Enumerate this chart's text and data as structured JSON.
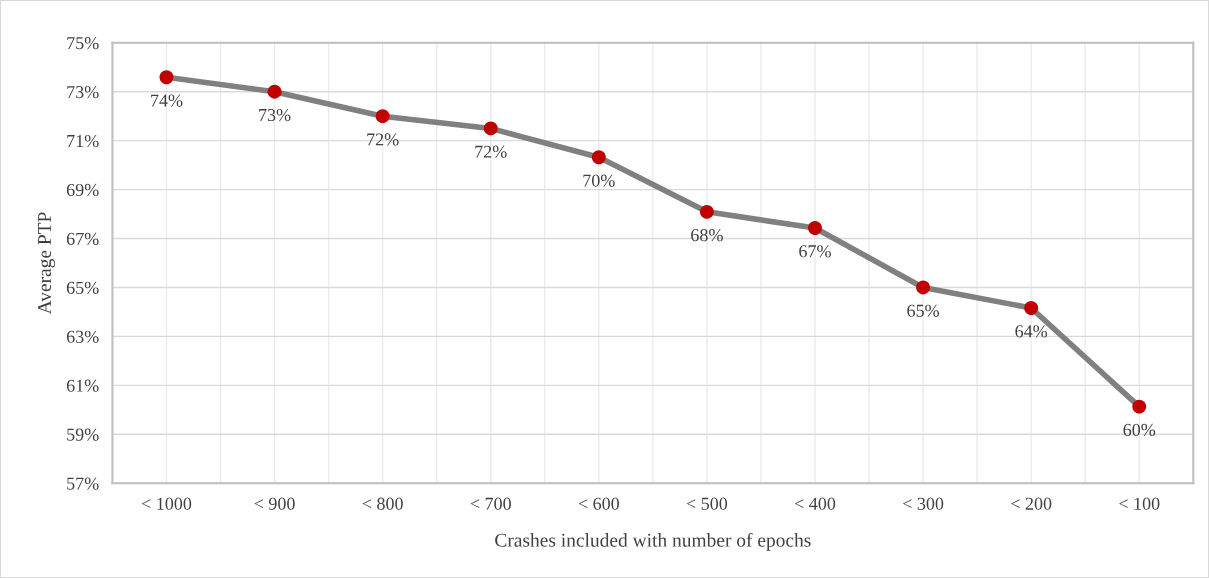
{
  "chart_data": {
    "type": "line",
    "xlabel": "Crashes included with number of epochs",
    "ylabel": "Average PTP",
    "categories": [
      "< 1000",
      "< 900",
      "< 800",
      "< 700",
      "< 600",
      "< 500",
      "< 400",
      "< 300",
      "< 200",
      "< 100"
    ],
    "series": [
      {
        "color": "#808080",
        "colors": [
          "#c00000",
          "#c00000",
          "#c00000",
          "#c00000",
          "#c00000",
          "#c00000",
          "#c00000",
          "#c00000",
          "#c00000",
          "#c00000"
        ],
        "values": [
          73.59,
          73.0,
          72.0,
          71.5,
          70.32,
          68.09,
          67.43,
          65.0,
          64.16,
          60.13
        ],
        "value_labels": [
          "74%",
          "73%",
          "72%",
          "72%",
          "70%",
          "68%",
          "67%",
          "65%",
          "64%",
          "60%"
        ]
      }
    ],
    "ylim": [
      57,
      75
    ],
    "yticks": [
      {
        "value": 57,
        "label": "57%"
      },
      {
        "value": 59,
        "label": "59%"
      },
      {
        "value": 61,
        "label": "61%"
      },
      {
        "value": 63,
        "label": "63%"
      },
      {
        "value": 65,
        "label": "65%"
      },
      {
        "value": 67,
        "label": "67%"
      },
      {
        "value": 69,
        "label": "69%"
      },
      {
        "value": 71,
        "label": "71%"
      },
      {
        "value": 73,
        "label": "73%"
      },
      {
        "value": 75,
        "label": "75%"
      }
    ],
    "grid": true,
    "marker": "circle",
    "line_style": "solid",
    "legend": false
  }
}
